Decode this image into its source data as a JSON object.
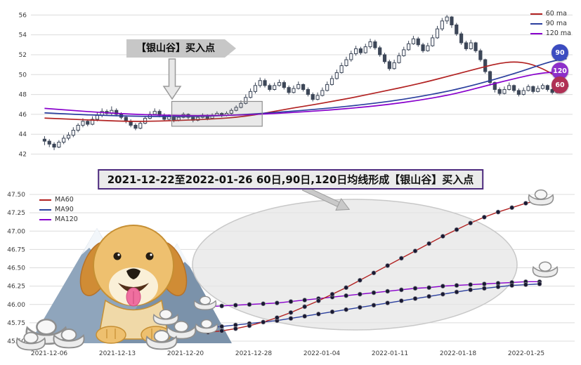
{
  "decorations": {
    "dog": "golden-retriever-dog",
    "mountains": "snow-capped-mountains",
    "ingots": "silver-yuanbao-ingots",
    "highlight": "gray-ellipse-highlight"
  },
  "chart_data": [
    {
      "type": "candlestick",
      "title": "",
      "xlabel": "",
      "ylabel": "",
      "grid": true,
      "legend_position": "upper right",
      "y_ticks": [
        56,
        54,
        52,
        50,
        48,
        46,
        44,
        42
      ],
      "ylim": [
        41.4,
        56.8
      ],
      "x_tick_labels": [],
      "legend": [
        {
          "label": "60 ma",
          "color": "#b22222"
        },
        {
          "label": "90 ma",
          "color": "#2b3f9e"
        },
        {
          "label": "120 ma",
          "color": "#8800cc"
        }
      ],
      "annotation": {
        "label": "【银山谷】买入点",
        "target": "ma-crossover-box"
      },
      "badges": [
        {
          "label": "90",
          "value": 52.2,
          "color": "#3b4cc0"
        },
        {
          "label": "120",
          "value": 50.35,
          "color": "#8d2fc9"
        },
        {
          "label": "60",
          "value": 48.95,
          "color": "#b03055"
        }
      ],
      "highlight_box": {
        "start_index": 27,
        "end_index": 45,
        "price_low": 44.8,
        "price_high": 47.3
      },
      "candles_ohlc": [
        [
          43.5,
          43.8,
          42.9,
          43.3
        ],
        [
          43.3,
          43.5,
          42.7,
          43.0
        ],
        [
          43.0,
          43.2,
          42.4,
          42.7
        ],
        [
          42.7,
          43.4,
          42.6,
          43.2
        ],
        [
          43.2,
          43.9,
          43.0,
          43.6
        ],
        [
          43.6,
          44.2,
          43.4,
          43.9
        ],
        [
          43.9,
          44.7,
          43.7,
          44.4
        ],
        [
          44.4,
          45.1,
          44.2,
          44.9
        ],
        [
          44.9,
          45.6,
          44.7,
          45.3
        ],
        [
          45.3,
          45.5,
          44.8,
          45.0
        ],
        [
          45.0,
          45.8,
          44.9,
          45.5
        ],
        [
          45.5,
          46.2,
          45.3,
          45.9
        ],
        [
          45.9,
          46.6,
          45.7,
          46.3
        ],
        [
          46.3,
          46.5,
          45.9,
          46.1
        ],
        [
          46.1,
          46.8,
          45.9,
          46.4
        ],
        [
          46.4,
          46.6,
          45.8,
          46.0
        ],
        [
          46.0,
          46.2,
          45.5,
          45.7
        ],
        [
          45.7,
          45.9,
          45.1,
          45.3
        ],
        [
          45.3,
          45.5,
          44.7,
          44.9
        ],
        [
          44.9,
          45.1,
          44.4,
          44.6
        ],
        [
          44.6,
          45.3,
          44.5,
          45.1
        ],
        [
          45.1,
          45.8,
          45.0,
          45.6
        ],
        [
          45.6,
          46.3,
          45.5,
          46.0
        ],
        [
          46.0,
          46.6,
          45.9,
          46.3
        ],
        [
          46.3,
          46.5,
          45.7,
          45.9
        ],
        [
          45.9,
          46.1,
          45.3,
          45.5
        ],
        [
          45.5,
          46.0,
          45.4,
          45.8
        ],
        [
          45.8,
          45.9,
          45.2,
          45.4
        ],
        [
          45.4,
          45.9,
          45.3,
          45.7
        ],
        [
          45.7,
          46.2,
          45.6,
          46.0
        ],
        [
          46.0,
          46.1,
          45.5,
          45.7
        ],
        [
          45.7,
          45.8,
          45.2,
          45.4
        ],
        [
          45.4,
          45.9,
          45.3,
          45.7
        ],
        [
          45.7,
          46.1,
          45.6,
          45.9
        ],
        [
          45.9,
          46.0,
          45.4,
          45.6
        ],
        [
          45.6,
          46.1,
          45.5,
          45.9
        ],
        [
          45.9,
          46.3,
          45.8,
          46.1
        ],
        [
          46.1,
          46.2,
          45.7,
          45.9
        ],
        [
          45.9,
          46.3,
          45.8,
          46.1
        ],
        [
          46.1,
          46.6,
          46.0,
          46.4
        ],
        [
          46.4,
          46.9,
          46.3,
          46.7
        ],
        [
          46.7,
          47.4,
          46.6,
          47.1
        ],
        [
          47.1,
          48.0,
          47.0,
          47.7
        ],
        [
          47.7,
          48.6,
          47.6,
          48.3
        ],
        [
          48.3,
          49.2,
          48.1,
          48.9
        ],
        [
          48.9,
          49.7,
          48.7,
          49.4
        ],
        [
          49.4,
          49.6,
          48.7,
          48.9
        ],
        [
          48.9,
          49.1,
          48.3,
          48.5
        ],
        [
          48.5,
          49.2,
          48.4,
          48.9
        ],
        [
          48.9,
          49.5,
          48.8,
          49.2
        ],
        [
          49.2,
          49.4,
          48.5,
          48.7
        ],
        [
          48.7,
          48.9,
          48.0,
          48.2
        ],
        [
          48.2,
          48.9,
          48.1,
          48.6
        ],
        [
          48.6,
          49.3,
          48.5,
          49.0
        ],
        [
          49.0,
          49.1,
          48.3,
          48.5
        ],
        [
          48.5,
          48.7,
          47.8,
          48.0
        ],
        [
          48.0,
          48.2,
          47.3,
          47.5
        ],
        [
          47.5,
          48.2,
          47.4,
          47.9
        ],
        [
          47.9,
          48.7,
          47.8,
          48.4
        ],
        [
          48.4,
          49.3,
          48.3,
          49.0
        ],
        [
          49.0,
          49.9,
          48.9,
          49.6
        ],
        [
          49.6,
          50.5,
          49.5,
          50.2
        ],
        [
          50.2,
          51.2,
          50.1,
          50.9
        ],
        [
          50.9,
          51.8,
          50.8,
          51.5
        ],
        [
          51.5,
          52.4,
          51.3,
          52.1
        ],
        [
          52.1,
          52.9,
          51.9,
          52.6
        ],
        [
          52.6,
          52.8,
          52.0,
          52.2
        ],
        [
          52.2,
          53.1,
          52.1,
          52.8
        ],
        [
          52.8,
          53.6,
          52.6,
          53.3
        ],
        [
          53.3,
          53.5,
          52.5,
          52.7
        ],
        [
          52.7,
          52.9,
          51.8,
          52.0
        ],
        [
          52.0,
          52.2,
          51.1,
          51.3
        ],
        [
          51.3,
          51.5,
          50.4,
          50.6
        ],
        [
          50.6,
          51.5,
          50.5,
          51.2
        ],
        [
          51.2,
          52.2,
          51.1,
          51.9
        ],
        [
          51.9,
          52.8,
          51.8,
          52.5
        ],
        [
          52.5,
          53.4,
          52.4,
          53.1
        ],
        [
          53.1,
          53.9,
          53.0,
          53.6
        ],
        [
          53.6,
          53.8,
          52.8,
          53.0
        ],
        [
          53.0,
          53.2,
          52.2,
          52.4
        ],
        [
          52.4,
          53.2,
          52.3,
          52.9
        ],
        [
          52.9,
          54.0,
          52.8,
          53.7
        ],
        [
          53.7,
          54.9,
          53.6,
          54.6
        ],
        [
          54.6,
          55.7,
          54.4,
          55.4
        ],
        [
          55.4,
          56.0,
          55.1,
          55.8
        ],
        [
          55.8,
          55.9,
          54.7,
          55.0
        ],
        [
          55.0,
          55.2,
          53.9,
          54.1
        ],
        [
          54.1,
          54.3,
          53.0,
          53.2
        ],
        [
          53.2,
          53.4,
          52.4,
          52.6
        ],
        [
          52.6,
          53.5,
          52.5,
          53.2
        ],
        [
          53.2,
          53.3,
          52.2,
          52.4
        ],
        [
          52.4,
          52.6,
          51.3,
          51.5
        ],
        [
          51.5,
          51.6,
          50.1,
          50.3
        ],
        [
          50.3,
          50.4,
          48.9,
          49.2
        ],
        [
          49.2,
          49.3,
          48.2,
          48.5
        ],
        [
          48.5,
          48.7,
          47.9,
          48.1
        ],
        [
          48.1,
          48.8,
          48.0,
          48.5
        ],
        [
          48.5,
          49.2,
          48.4,
          48.9
        ],
        [
          48.9,
          49.0,
          48.2,
          48.4
        ],
        [
          48.4,
          48.6,
          47.8,
          48.0
        ],
        [
          48.0,
          48.7,
          47.9,
          48.4
        ],
        [
          48.4,
          49.0,
          48.3,
          48.8
        ],
        [
          48.8,
          48.9,
          48.1,
          48.3
        ],
        [
          48.3,
          48.9,
          48.2,
          48.6
        ],
        [
          48.6,
          49.1,
          48.5,
          48.9
        ],
        [
          48.9,
          49.0,
          48.3,
          48.5
        ],
        [
          48.5,
          48.6,
          48.0,
          48.2
        ],
        [
          48.2,
          48.8,
          48.1,
          48.6
        ],
        [
          48.6,
          49.1,
          48.5,
          48.8
        ],
        [
          48.8,
          49.3,
          48.7,
          49.0
        ]
      ],
      "ma60": [
        [
          0,
          45.62
        ],
        [
          6,
          45.5
        ],
        [
          12,
          45.38
        ],
        [
          18,
          45.28
        ],
        [
          24,
          45.32
        ],
        [
          30,
          45.42
        ],
        [
          36,
          45.55
        ],
        [
          40,
          45.7
        ],
        [
          44,
          45.95
        ],
        [
          48,
          46.3
        ],
        [
          52,
          46.65
        ],
        [
          56,
          46.95
        ],
        [
          60,
          47.3
        ],
        [
          64,
          47.65
        ],
        [
          68,
          48.05
        ],
        [
          72,
          48.45
        ],
        [
          76,
          48.85
        ],
        [
          80,
          49.3
        ],
        [
          84,
          49.8
        ],
        [
          88,
          50.3
        ],
        [
          92,
          50.8
        ],
        [
          95,
          51.15
        ],
        [
          98,
          51.3
        ],
        [
          101,
          51.15
        ],
        [
          104,
          50.6
        ],
        [
          107,
          49.8
        ],
        [
          109,
          49.1
        ]
      ],
      "ma90": [
        [
          0,
          46.15
        ],
        [
          6,
          46.0
        ],
        [
          12,
          45.9
        ],
        [
          18,
          45.82
        ],
        [
          24,
          45.78
        ],
        [
          30,
          45.78
        ],
        [
          36,
          45.85
        ],
        [
          42,
          45.98
        ],
        [
          48,
          46.18
        ],
        [
          54,
          46.4
        ],
        [
          60,
          46.65
        ],
        [
          66,
          46.95
        ],
        [
          72,
          47.3
        ],
        [
          78,
          47.75
        ],
        [
          84,
          48.3
        ],
        [
          88,
          48.75
        ],
        [
          92,
          49.25
        ],
        [
          96,
          49.8
        ],
        [
          100,
          50.4
        ],
        [
          103,
          50.9
        ],
        [
          106,
          51.35
        ],
        [
          108,
          51.55
        ],
        [
          109,
          51.6
        ]
      ],
      "ma120": [
        [
          0,
          46.6
        ],
        [
          6,
          46.38
        ],
        [
          12,
          46.18
        ],
        [
          18,
          46.02
        ],
        [
          24,
          45.92
        ],
        [
          30,
          45.87
        ],
        [
          36,
          45.88
        ],
        [
          42,
          45.95
        ],
        [
          48,
          46.08
        ],
        [
          54,
          46.25
        ],
        [
          60,
          46.45
        ],
        [
          66,
          46.7
        ],
        [
          72,
          47.0
        ],
        [
          78,
          47.4
        ],
        [
          84,
          47.9
        ],
        [
          88,
          48.35
        ],
        [
          92,
          48.85
        ],
        [
          96,
          49.35
        ],
        [
          100,
          49.8
        ],
        [
          103,
          50.1
        ],
        [
          106,
          50.25
        ],
        [
          108,
          50.2
        ],
        [
          109,
          50.1
        ]
      ]
    },
    {
      "type": "line",
      "title": "2021-12-22至2022-01-26 60日,90日,120日均线形成【银山谷】买入点",
      "xlabel": "",
      "ylabel": "",
      "grid": true,
      "legend_position": "upper left",
      "y_tick_labels": [
        "47.50",
        "47.25",
        "47.00",
        "46.75",
        "46.50",
        "46.25",
        "46.00",
        "45.75",
        "45.50"
      ],
      "ylim": [
        45.5,
        47.5
      ],
      "x_tick_labels": [
        "2021-12-06",
        "2021-12-13",
        "2021-12-20",
        "2021-12-28",
        "2022-01-04",
        "2022-01-11",
        "2022-01-18",
        "2022-01-25"
      ],
      "marker_color": "#191932",
      "highlight_ellipse": true,
      "point_dates": [
        "2021-12-22",
        "2021-12-23",
        "2021-12-24",
        "2021-12-27",
        "2021-12-28",
        "2021-12-29",
        "2021-12-30",
        "2021-12-31",
        "2022-01-04",
        "2022-01-05",
        "2022-01-06",
        "2022-01-07",
        "2022-01-10",
        "2022-01-11",
        "2022-01-12",
        "2022-01-13",
        "2022-01-14",
        "2022-01-17",
        "2022-01-18",
        "2022-01-19",
        "2022-01-20",
        "2022-01-21",
        "2022-01-24",
        "2022-01-25",
        "2022-01-26"
      ],
      "series": [
        {
          "name": "MA60",
          "color": "#b22222",
          "values": [
            45.62,
            45.64,
            45.67,
            45.71,
            45.76,
            45.82,
            45.89,
            45.97,
            46.05,
            46.14,
            46.23,
            46.33,
            46.43,
            46.53,
            46.63,
            46.73,
            46.83,
            46.93,
            47.02,
            47.11,
            47.19,
            47.26,
            47.32,
            47.38,
            47.42
          ]
        },
        {
          "name": "MA90",
          "color": "#2b3f9e",
          "values": [
            45.68,
            45.7,
            45.72,
            45.74,
            45.76,
            45.78,
            45.81,
            45.84,
            45.87,
            45.9,
            45.93,
            45.96,
            45.99,
            46.02,
            46.05,
            46.08,
            46.11,
            46.14,
            46.17,
            46.2,
            46.22,
            46.24,
            46.26,
            46.27,
            46.28
          ]
        },
        {
          "name": "MA120",
          "color": "#8800cc",
          "values": [
            45.97,
            45.98,
            45.99,
            46.0,
            46.01,
            46.02,
            46.04,
            46.06,
            46.08,
            46.1,
            46.12,
            46.14,
            46.16,
            46.18,
            46.2,
            46.22,
            46.23,
            46.25,
            46.26,
            46.27,
            46.28,
            46.29,
            46.3,
            46.31,
            46.31
          ]
        }
      ]
    }
  ]
}
